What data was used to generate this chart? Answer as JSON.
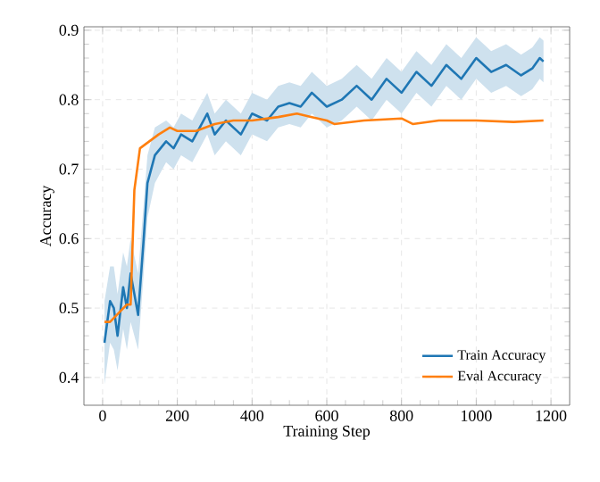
{
  "chart_data": {
    "type": "line",
    "xlabel": "Training Step",
    "ylabel": "Accuracy",
    "xlim": [
      -50,
      1250
    ],
    "ylim": [
      0.36,
      0.905
    ],
    "xticks": [
      0,
      200,
      400,
      600,
      800,
      1000,
      1200
    ],
    "yticks": [
      0.4,
      0.5,
      0.6,
      0.7,
      0.8,
      0.9
    ],
    "grid": true,
    "legend": "bottom right",
    "line_style": "solid",
    "marker": "none",
    "series": [
      {
        "name": "Train Accuracy",
        "color": "#1f77b4",
        "x": [
          5,
          20,
          30,
          40,
          55,
          65,
          75,
          95,
          110,
          120,
          140,
          170,
          190,
          210,
          240,
          260,
          280,
          300,
          330,
          370,
          400,
          440,
          470,
          500,
          530,
          560,
          600,
          640,
          680,
          720,
          760,
          800,
          840,
          880,
          920,
          960,
          1000,
          1040,
          1080,
          1120,
          1150,
          1170,
          1180
        ],
        "values": [
          0.45,
          0.51,
          0.5,
          0.46,
          0.53,
          0.5,
          0.55,
          0.49,
          0.6,
          0.68,
          0.72,
          0.74,
          0.73,
          0.75,
          0.74,
          0.76,
          0.78,
          0.75,
          0.77,
          0.75,
          0.78,
          0.77,
          0.79,
          0.795,
          0.79,
          0.81,
          0.79,
          0.8,
          0.82,
          0.8,
          0.83,
          0.81,
          0.84,
          0.82,
          0.85,
          0.83,
          0.86,
          0.84,
          0.85,
          0.835,
          0.845,
          0.86,
          0.855
        ],
        "lower": [
          0.39,
          0.45,
          0.44,
          0.41,
          0.47,
          0.44,
          0.48,
          0.44,
          0.55,
          0.63,
          0.68,
          0.71,
          0.7,
          0.72,
          0.71,
          0.73,
          0.75,
          0.72,
          0.74,
          0.72,
          0.75,
          0.74,
          0.76,
          0.765,
          0.76,
          0.78,
          0.76,
          0.77,
          0.79,
          0.77,
          0.8,
          0.78,
          0.81,
          0.79,
          0.82,
          0.8,
          0.83,
          0.81,
          0.82,
          0.805,
          0.815,
          0.83,
          0.825
        ],
        "upper": [
          0.51,
          0.56,
          0.56,
          0.52,
          0.58,
          0.56,
          0.6,
          0.55,
          0.65,
          0.72,
          0.76,
          0.77,
          0.76,
          0.78,
          0.77,
          0.79,
          0.81,
          0.78,
          0.8,
          0.78,
          0.81,
          0.8,
          0.82,
          0.825,
          0.82,
          0.84,
          0.82,
          0.83,
          0.85,
          0.83,
          0.86,
          0.84,
          0.87,
          0.85,
          0.88,
          0.86,
          0.89,
          0.87,
          0.88,
          0.865,
          0.875,
          0.89,
          0.885
        ]
      },
      {
        "name": "Eval Accuracy",
        "color": "#ff7f0e",
        "x": [
          5,
          20,
          65,
          75,
          85,
          100,
          150,
          180,
          200,
          250,
          300,
          350,
          400,
          470,
          520,
          560,
          600,
          620,
          700,
          800,
          830,
          900,
          1000,
          1100,
          1180
        ],
        "values": [
          0.48,
          0.48,
          0.505,
          0.505,
          0.67,
          0.73,
          0.75,
          0.76,
          0.755,
          0.755,
          0.765,
          0.77,
          0.77,
          0.775,
          0.78,
          0.775,
          0.77,
          0.765,
          0.77,
          0.773,
          0.765,
          0.77,
          0.77,
          0.768,
          0.77
        ]
      }
    ]
  }
}
